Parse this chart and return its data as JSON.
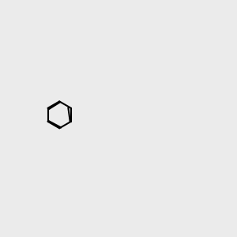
{
  "bg_color": "#ebebeb",
  "bond_color": "#000000",
  "bond_lw": 1.5,
  "atom_colors": {
    "N": "#0000ee",
    "O": "#ee0000",
    "S": "#aaaa00",
    "NH": "#33aaaa",
    "C": "#000000"
  },
  "font_size": 9,
  "fig_size": [
    3.0,
    3.0
  ],
  "dpi": 100
}
